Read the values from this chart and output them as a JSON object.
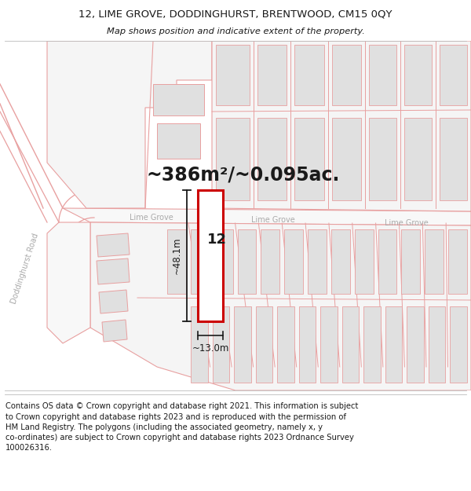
{
  "title_line1": "12, LIME GROVE, DODDINGHURST, BRENTWOOD, CM15 0QY",
  "title_line2": "Map shows position and indicative extent of the property.",
  "area_text": "~386m²/~0.095ac.",
  "label_number": "12",
  "dim_height": "~48.1m",
  "dim_width": "~13.0m",
  "street_label1": "Lime Grove",
  "street_label2": "Lime Grove",
  "street_label3": "Lime Grove",
  "road_label": "Doddinghurst Road",
  "footer_text": "Contains OS data © Crown copyright and database right 2021. This information is subject\nto Crown copyright and database rights 2023 and is reproduced with the permission of\nHM Land Registry. The polygons (including the associated geometry, namely x, y\nco-ordinates) are subject to Crown copyright and database rights 2023 Ordnance Survey\n100026316.",
  "bg_color": "#ffffff",
  "map_bg": "#ffffff",
  "building_fill": "#e0e0e0",
  "plot_line": "#e8a0a0",
  "highlight_fill": "#ffffff",
  "highlight_edge": "#cc0000",
  "dim_line_color": "#1a1a1a",
  "text_color": "#1a1a1a",
  "street_label_color": "#aaaaaa",
  "road_label_color": "#aaaaaa",
  "title_fontsize": 9.5,
  "footer_fontsize": 7.2,
  "area_fontsize": 17,
  "label_fontsize": 13,
  "dim_fontsize": 8.5,
  "street_fontsize": 7,
  "road_fontsize": 7
}
